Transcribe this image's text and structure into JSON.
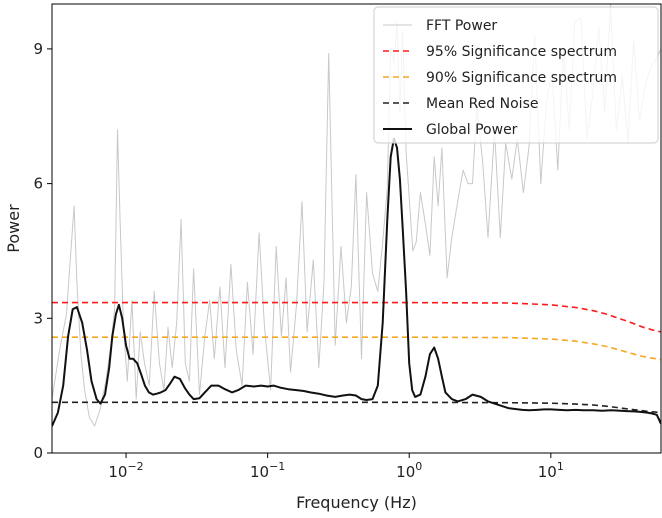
{
  "chart_data": {
    "type": "line",
    "title": "",
    "xlabel": "Frequency (Hz)",
    "ylabel": "Power",
    "xscale": "log",
    "xlim": [
      0.003,
      60
    ],
    "ylim": [
      0,
      10
    ],
    "x_ticks": [
      {
        "value": 0.01,
        "base": "10",
        "exp": "−2"
      },
      {
        "value": 0.1,
        "base": "10",
        "exp": "−1"
      },
      {
        "value": 1,
        "base": "10",
        "exp": "0"
      },
      {
        "value": 10,
        "base": "10",
        "exp": "1"
      }
    ],
    "y_ticks": [
      {
        "value": 0,
        "label": "0"
      },
      {
        "value": 3,
        "label": "3"
      },
      {
        "value": 6,
        "label": "6"
      },
      {
        "value": 9,
        "label": "9"
      }
    ],
    "grid": false,
    "legend_position": "top-right",
    "series": [
      {
        "name": "FFT Power",
        "color": "#c8c8c8",
        "style": "solid",
        "x": [
          0.003,
          0.0034,
          0.0038,
          0.0041,
          0.0043,
          0.0045,
          0.0048,
          0.0051,
          0.0055,
          0.006,
          0.0066,
          0.0072,
          0.0078,
          0.0083,
          0.0087,
          0.0091,
          0.0096,
          0.0102,
          0.011,
          0.0118,
          0.0126,
          0.0135,
          0.0146,
          0.0158,
          0.0172,
          0.0185,
          0.0198,
          0.0212,
          0.0228,
          0.0245,
          0.0262,
          0.028,
          0.03,
          0.033,
          0.036,
          0.039,
          0.042,
          0.046,
          0.05,
          0.055,
          0.06,
          0.066,
          0.072,
          0.079,
          0.087,
          0.095,
          0.105,
          0.115,
          0.125,
          0.135,
          0.145,
          0.16,
          0.175,
          0.19,
          0.21,
          0.23,
          0.25,
          0.27,
          0.3,
          0.33,
          0.36,
          0.39,
          0.42,
          0.46,
          0.5,
          0.55,
          0.6,
          0.65,
          0.7,
          0.74,
          0.78,
          0.82,
          0.86,
          0.9,
          0.95,
          1.0,
          1.06,
          1.12,
          1.2,
          1.3,
          1.4,
          1.5,
          1.6,
          1.7,
          1.85,
          2.0,
          2.2,
          2.4,
          2.6,
          2.8,
          3.0,
          3.3,
          3.6,
          4.0,
          4.4,
          4.8,
          5.3,
          5.8,
          6.4,
          7.0,
          7.7,
          8.5,
          9.3,
          10.2,
          11.2,
          12.3,
          13.5,
          14.8,
          16.3,
          18.0,
          19.8,
          21.8,
          24.0,
          26.4,
          29.0,
          32.0,
          35.0,
          38.5,
          42.3,
          46.5,
          51.0,
          56.0,
          60.0
        ],
        "y": [
          1.2,
          2.3,
          3.1,
          4.6,
          5.5,
          3.8,
          2.2,
          1.4,
          0.8,
          0.6,
          1.0,
          1.6,
          2.4,
          3.2,
          7.2,
          5.1,
          2.8,
          1.6,
          3.4,
          1.2,
          2.7,
          2.0,
          1.5,
          3.6,
          2.0,
          1.4,
          2.8,
          1.9,
          2.9,
          5.2,
          2.0,
          1.6,
          4.1,
          1.3,
          2.6,
          3.4,
          2.1,
          3.7,
          1.9,
          4.2,
          2.3,
          1.5,
          3.8,
          2.2,
          4.9,
          2.8,
          1.4,
          4.6,
          2.6,
          3.9,
          1.8,
          3.3,
          5.6,
          2.7,
          4.3,
          1.9,
          3.8,
          8.9,
          2.4,
          4.6,
          2.9,
          3.7,
          6.2,
          2.1,
          5.8,
          4.0,
          3.6,
          4.7,
          5.9,
          9.0,
          8.7,
          9.6,
          7.6,
          9.4,
          6.7,
          5.7,
          4.5,
          4.7,
          5.8,
          5.1,
          4.4,
          6.6,
          5.5,
          6.8,
          3.9,
          4.8,
          5.6,
          6.3,
          6.0,
          6.0,
          7.7,
          6.5,
          4.8,
          7.2,
          4.8,
          6.9,
          6.1,
          7.0,
          5.8,
          6.8,
          9.3,
          6.0,
          7.8,
          8.5,
          6.3,
          9.0,
          7.2,
          9.6,
          9.7,
          7.0,
          8.0,
          9.5,
          7.6,
          10.0,
          7.2,
          8.4,
          6.9,
          9.2,
          7.4,
          8.2,
          8.6,
          8.8,
          9.0
        ]
      },
      {
        "name": "95% Significance spectrum",
        "color": "#ff1a1a",
        "style": "dashed",
        "x": [
          0.003,
          0.1,
          1,
          5,
          10,
          15,
          20,
          25,
          30,
          35,
          40,
          45,
          50,
          55,
          60
        ],
        "y": [
          3.35,
          3.35,
          3.35,
          3.34,
          3.3,
          3.24,
          3.17,
          3.09,
          3.0,
          2.93,
          2.86,
          2.8,
          2.76,
          2.72,
          2.7
        ]
      },
      {
        "name": "90% Significance spectrum",
        "color": "#f5a623",
        "style": "dashed",
        "x": [
          0.003,
          0.1,
          1,
          5,
          10,
          15,
          20,
          25,
          30,
          35,
          40,
          45,
          50,
          55,
          60
        ],
        "y": [
          2.58,
          2.58,
          2.58,
          2.57,
          2.54,
          2.49,
          2.43,
          2.37,
          2.3,
          2.24,
          2.19,
          2.15,
          2.12,
          2.1,
          2.08
        ]
      },
      {
        "name": "Mean Red Noise",
        "color": "#222222",
        "style": "dashed",
        "x": [
          0.003,
          0.1,
          1,
          5,
          10,
          15,
          20,
          25,
          30,
          35,
          40,
          45,
          50,
          55,
          60
        ],
        "y": [
          1.13,
          1.13,
          1.13,
          1.12,
          1.11,
          1.09,
          1.07,
          1.04,
          1.01,
          0.98,
          0.96,
          0.94,
          0.92,
          0.91,
          0.9
        ]
      },
      {
        "name": "Global Power",
        "color": "#111111",
        "style": "solid",
        "x": [
          0.003,
          0.0033,
          0.0036,
          0.0039,
          0.0042,
          0.0045,
          0.0049,
          0.0053,
          0.0057,
          0.0062,
          0.0066,
          0.0071,
          0.0076,
          0.008,
          0.0085,
          0.0089,
          0.0094,
          0.01,
          0.0106,
          0.0112,
          0.012,
          0.0128,
          0.0136,
          0.0145,
          0.0155,
          0.0165,
          0.0176,
          0.019,
          0.0205,
          0.022,
          0.024,
          0.026,
          0.028,
          0.03,
          0.033,
          0.036,
          0.04,
          0.045,
          0.05,
          0.056,
          0.062,
          0.07,
          0.08,
          0.09,
          0.1,
          0.11,
          0.125,
          0.14,
          0.16,
          0.18,
          0.2,
          0.23,
          0.26,
          0.3,
          0.34,
          0.38,
          0.42,
          0.46,
          0.5,
          0.55,
          0.6,
          0.65,
          0.7,
          0.74,
          0.78,
          0.82,
          0.86,
          0.9,
          0.95,
          1.0,
          1.05,
          1.1,
          1.2,
          1.3,
          1.4,
          1.5,
          1.6,
          1.7,
          1.8,
          2.0,
          2.2,
          2.5,
          2.8,
          3.2,
          3.6,
          4.0,
          4.5,
          5.0,
          5.6,
          6.3,
          7.0,
          8.0,
          9.0,
          10.0,
          11.5,
          13.0,
          15.0,
          17.0,
          20.0,
          23.0,
          27.0,
          31.0,
          36.0,
          42.0,
          48.0,
          52.0,
          56.0,
          60.0
        ],
        "y": [
          0.6,
          0.9,
          1.5,
          2.6,
          3.2,
          3.25,
          2.9,
          2.3,
          1.6,
          1.2,
          1.1,
          1.3,
          1.9,
          2.6,
          3.1,
          3.3,
          3.0,
          2.4,
          2.1,
          2.1,
          2.0,
          1.75,
          1.5,
          1.35,
          1.3,
          1.32,
          1.35,
          1.4,
          1.55,
          1.7,
          1.65,
          1.45,
          1.3,
          1.2,
          1.22,
          1.35,
          1.5,
          1.5,
          1.42,
          1.35,
          1.4,
          1.5,
          1.48,
          1.5,
          1.48,
          1.5,
          1.45,
          1.42,
          1.4,
          1.38,
          1.35,
          1.32,
          1.28,
          1.25,
          1.28,
          1.3,
          1.28,
          1.2,
          1.18,
          1.2,
          1.5,
          2.9,
          5.2,
          6.6,
          7.0,
          6.8,
          6.1,
          5.0,
          3.6,
          2.0,
          1.4,
          1.25,
          1.3,
          1.7,
          2.2,
          2.35,
          2.1,
          1.7,
          1.35,
          1.2,
          1.15,
          1.2,
          1.3,
          1.25,
          1.15,
          1.1,
          1.05,
          1.0,
          0.98,
          0.96,
          0.95,
          0.96,
          0.97,
          0.97,
          0.96,
          0.95,
          0.96,
          0.95,
          0.95,
          0.94,
          0.95,
          0.94,
          0.93,
          0.92,
          0.9,
          0.88,
          0.85,
          0.65
        ]
      }
    ]
  }
}
